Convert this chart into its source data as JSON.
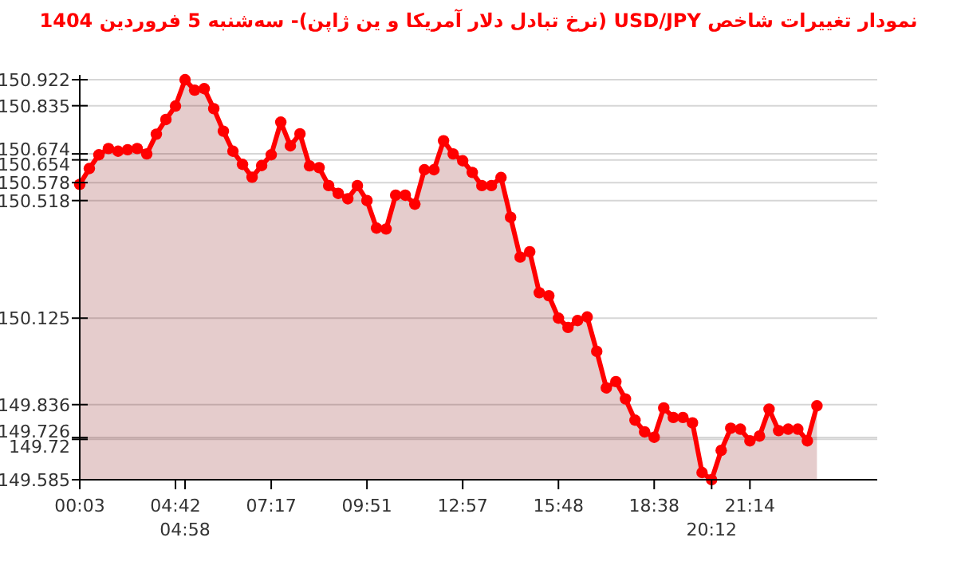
{
  "chart_data": {
    "type": "area",
    "title": "نمودار تغییرات شاخص USD/JPY (نرخ تبادل دلار آمریکا و ین ژاپن)- سه‌شنبه  5 فروردین 1404",
    "categories": [
      "00:03",
      null,
      null,
      null,
      null,
      null,
      null,
      null,
      null,
      null,
      "04:42",
      "04:58",
      null,
      null,
      null,
      null,
      null,
      null,
      null,
      null,
      "07:17",
      null,
      null,
      null,
      null,
      null,
      null,
      null,
      null,
      null,
      "09:51",
      null,
      null,
      null,
      null,
      null,
      null,
      null,
      null,
      null,
      "12:57",
      null,
      null,
      null,
      null,
      null,
      null,
      null,
      null,
      null,
      "15:48",
      null,
      null,
      null,
      null,
      null,
      null,
      null,
      null,
      null,
      "18:38",
      null,
      null,
      null,
      null,
      null,
      "20:12",
      null,
      null,
      null,
      "21:14",
      null,
      null,
      null,
      null,
      null,
      null,
      null
    ],
    "series": [
      {
        "color": "#ff0000",
        "values": [
          150.572,
          150.625,
          150.671,
          150.692,
          150.683,
          150.688,
          150.692,
          150.674,
          150.74,
          150.789,
          150.834,
          150.922,
          150.887,
          150.892,
          150.825,
          150.75,
          150.683,
          150.639,
          150.596,
          150.635,
          150.671,
          150.78,
          150.701,
          150.741,
          150.634,
          150.628,
          150.568,
          150.542,
          150.524,
          150.568,
          150.518,
          150.426,
          150.423,
          150.536,
          150.536,
          150.506,
          150.621,
          150.621,
          150.718,
          150.674,
          150.651,
          150.612,
          150.568,
          150.568,
          150.595,
          150.462,
          150.329,
          150.347,
          150.21,
          150.2,
          150.125,
          150.094,
          150.117,
          150.129,
          150.014,
          149.892,
          149.913,
          149.855,
          149.784,
          149.745,
          149.727,
          149.825,
          149.793,
          149.793,
          149.775,
          149.609,
          149.585,
          149.683,
          149.757,
          149.754,
          149.715,
          149.731,
          149.821,
          149.749,
          149.754,
          149.754,
          149.715,
          149.832
        ]
      }
    ],
    "ylim": [
      149.585,
      150.922
    ],
    "yticks": [
      150.922,
      150.835,
      150.674,
      150.654,
      150.578,
      150.518,
      150.125,
      149.836,
      149.726,
      149.72,
      149.585
    ],
    "grid": "y",
    "marker": "circle",
    "line_style": "solid"
  }
}
